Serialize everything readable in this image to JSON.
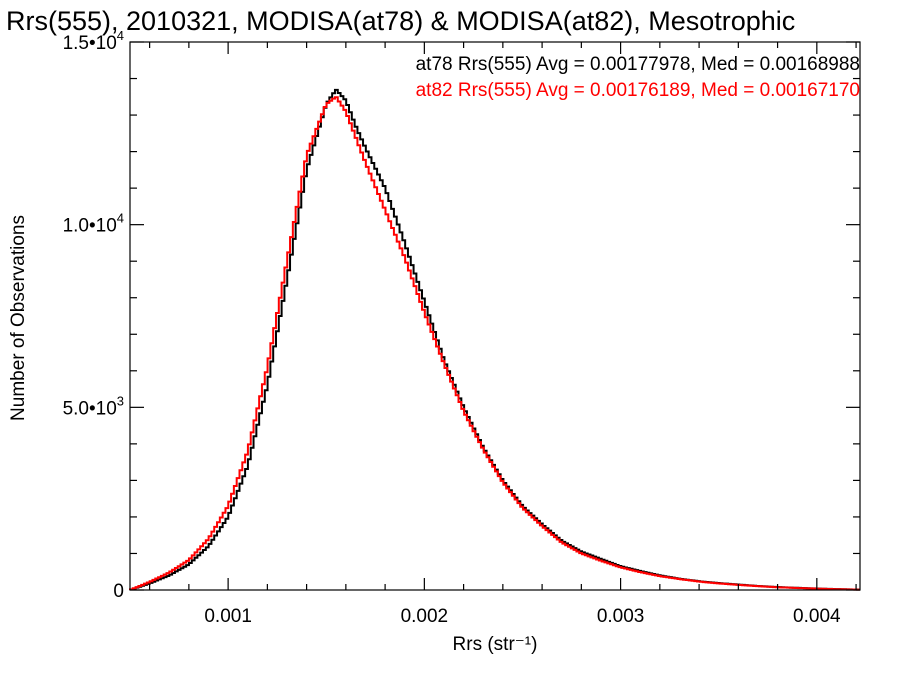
{
  "chart_data": {
    "type": "line",
    "title": "Rrs(555), 2010321, MODISA(at78) & MODISA(at82), Mesotrophic",
    "xlabel": "Rrs (str⁻¹)",
    "ylabel": "Number of Observations",
    "xlim": [
      0.0005,
      0.00422
    ],
    "ylim": [
      0,
      15000
    ],
    "x_ticks": [
      {
        "value": 0.001,
        "label": "0.001"
      },
      {
        "value": 0.002,
        "label": "0.002"
      },
      {
        "value": 0.003,
        "label": "0.003"
      },
      {
        "value": 0.004,
        "label": "0.004"
      }
    ],
    "y_ticks": [
      {
        "value": 0,
        "mantissa": "0",
        "exponent": ""
      },
      {
        "value": 5000,
        "mantissa": "5.0•10",
        "exponent": "3"
      },
      {
        "value": 10000,
        "mantissa": "1.0•10",
        "exponent": "4"
      },
      {
        "value": 15000,
        "mantissa": "1.5•10",
        "exponent": "4"
      }
    ],
    "grid": false,
    "step": true,
    "annotations": [
      {
        "text": "at78 Rrs(555) Avg = 0.00177978, Med = 0.00168988",
        "color": "#000000"
      },
      {
        "text": "at82 Rrs(555) Avg = 0.00176189, Med = 0.00167170",
        "color": "#ff0000"
      }
    ],
    "series": [
      {
        "color": "#000000",
        "x": [
          0.0005,
          0.0006,
          0.0007,
          0.0008,
          0.0009,
          0.001,
          0.0011,
          0.0012,
          0.0013,
          0.0014,
          0.0015,
          0.00155,
          0.0016,
          0.00165,
          0.0017,
          0.0018,
          0.0019,
          0.002,
          0.0021,
          0.0022,
          0.0023,
          0.0024,
          0.0025,
          0.0026,
          0.0027,
          0.0028,
          0.0029,
          0.003,
          0.0031,
          0.0032,
          0.0033,
          0.0034,
          0.0035,
          0.0036,
          0.0037,
          0.0038,
          0.0039,
          0.004,
          0.0041,
          0.00422
        ],
        "y": [
          0,
          180,
          400,
          700,
          1200,
          2000,
          3400,
          5600,
          8500,
          11500,
          13300,
          13700,
          13400,
          12700,
          12100,
          11000,
          9500,
          7900,
          6300,
          5000,
          3900,
          3000,
          2300,
          1800,
          1350,
          1050,
          850,
          650,
          520,
          400,
          310,
          240,
          190,
          150,
          110,
          80,
          60,
          40,
          25,
          10
        ]
      },
      {
        "color": "#ff0000",
        "x": [
          0.0005,
          0.0006,
          0.0007,
          0.0008,
          0.0009,
          0.001,
          0.0011,
          0.0012,
          0.0013,
          0.0014,
          0.0015,
          0.00155,
          0.0016,
          0.00165,
          0.0017,
          0.0018,
          0.0019,
          0.002,
          0.0021,
          0.0022,
          0.0023,
          0.0024,
          0.0025,
          0.0026,
          0.0027,
          0.0028,
          0.0029,
          0.003,
          0.0031,
          0.0032,
          0.0033,
          0.0034,
          0.0035,
          0.0036,
          0.0037,
          0.0038,
          0.0039,
          0.004,
          0.0041,
          0.00422
        ],
        "y": [
          0,
          220,
          480,
          820,
          1400,
          2300,
          3800,
          6100,
          9000,
          11900,
          13300,
          13500,
          13100,
          12400,
          11700,
          10400,
          9100,
          7600,
          6200,
          4900,
          3850,
          2950,
          2250,
          1750,
          1300,
          1000,
          800,
          620,
          490,
          380,
          300,
          230,
          180,
          140,
          105,
          75,
          55,
          38,
          22,
          8
        ]
      }
    ]
  }
}
